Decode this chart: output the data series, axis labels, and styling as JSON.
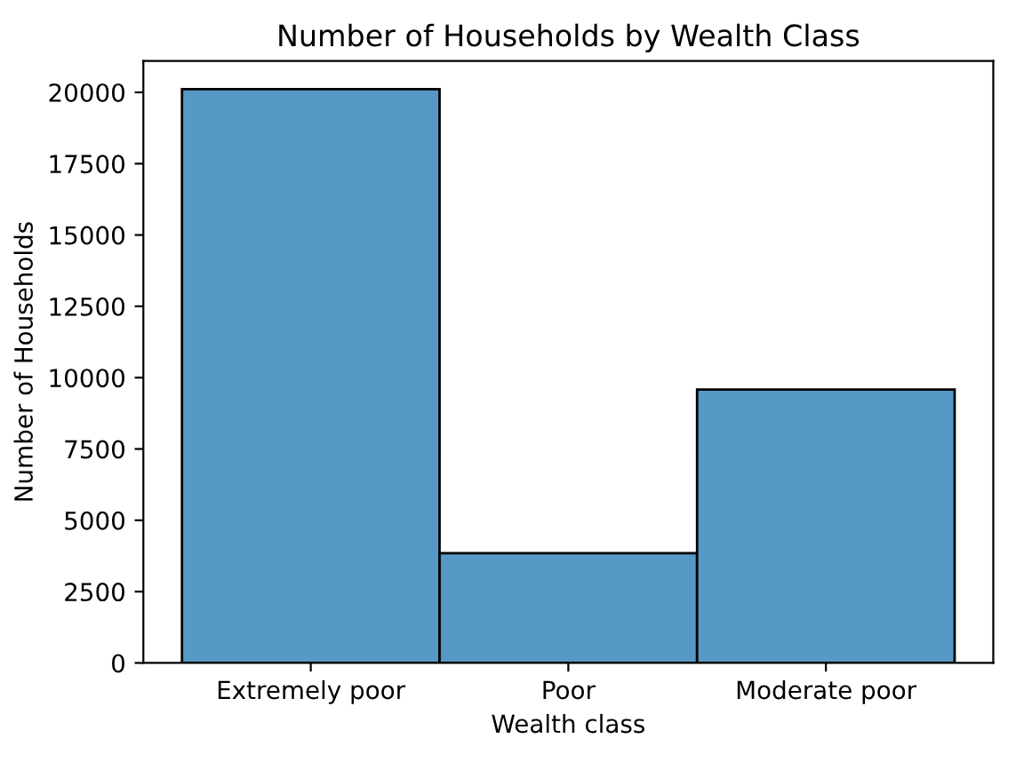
{
  "chart_data": {
    "type": "bar",
    "title": "Number of Households by Wealth Class",
    "xlabel": "Wealth class",
    "ylabel": "Number of Households",
    "categories": [
      "Extremely poor",
      "Poor",
      "Moderate poor"
    ],
    "values": [
      20110,
      3850,
      9580
    ],
    "color": "#5698c6",
    "ylim": [
      0,
      21100
    ],
    "yticks": [
      0,
      2500,
      5000,
      7500,
      10000,
      12500,
      15000,
      17500,
      20000
    ],
    "grid": false,
    "legend": false
  }
}
